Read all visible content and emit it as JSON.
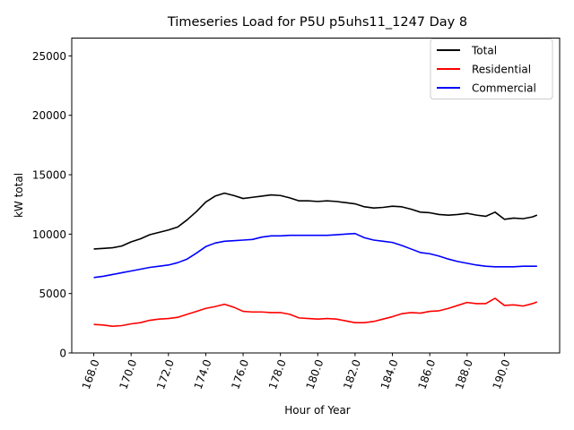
{
  "chart_data": {
    "type": "line",
    "title": "Timeseries Load for P5U p5uhs11_1247  Day 8",
    "xlabel": "Hour of Year",
    "ylabel": "kW total",
    "xlim": [
      166.82,
      192.96
    ],
    "ylim": [
      0,
      26500
    ],
    "xticks": [
      168,
      170,
      172,
      174,
      176,
      178,
      180,
      182,
      184,
      186,
      188,
      190
    ],
    "xtick_labels": [
      "168.0",
      "170.0",
      "172.0",
      "174.0",
      "176.0",
      "178.0",
      "180.0",
      "182.0",
      "184.0",
      "186.0",
      "188.0",
      "190.0"
    ],
    "yticks": [
      0,
      5000,
      10000,
      15000,
      20000,
      25000
    ],
    "ytick_labels": [
      "0",
      "5000",
      "10000",
      "15000",
      "20000",
      "25000"
    ],
    "legend_position": "top-right",
    "x": [
      168.0,
      168.5,
      169.0,
      169.5,
      170.0,
      170.5,
      171.0,
      171.5,
      172.0,
      172.5,
      173.0,
      173.5,
      174.0,
      174.5,
      175.0,
      175.5,
      176.0,
      176.5,
      177.0,
      177.5,
      178.0,
      178.5,
      179.0,
      179.5,
      180.0,
      180.5,
      181.0,
      181.5,
      182.0,
      182.5,
      183.0,
      183.5,
      184.0,
      184.5,
      185.0,
      185.5,
      186.0,
      186.5,
      187.0,
      187.5,
      188.0,
      188.5,
      189.0,
      189.5,
      190.0,
      190.5,
      191.0,
      191.5,
      191.75
    ],
    "series": [
      {
        "name": "Total",
        "color": "#000000",
        "values": [
          8750,
          8800,
          8850,
          9000,
          9350,
          9600,
          9950,
          10150,
          10350,
          10600,
          11200,
          11900,
          12700,
          13200,
          13450,
          13250,
          13000,
          13100,
          13200,
          13300,
          13250,
          13050,
          12800,
          12800,
          12750,
          12800,
          12750,
          12650,
          12550,
          12300,
          12200,
          12250,
          12350,
          12300,
          12100,
          11850,
          11800,
          11650,
          11600,
          11650,
          11750,
          11600,
          11500,
          11850,
          11250,
          11350,
          11300,
          11450,
          11600
        ]
      },
      {
        "name": "Residential",
        "color": "#ff0000",
        "values": [
          2400,
          2350,
          2250,
          2300,
          2450,
          2550,
          2750,
          2850,
          2900,
          3000,
          3250,
          3500,
          3750,
          3900,
          4100,
          3850,
          3500,
          3450,
          3450,
          3400,
          3400,
          3250,
          2950,
          2900,
          2850,
          2900,
          2850,
          2700,
          2550,
          2550,
          2650,
          2850,
          3050,
          3300,
          3400,
          3350,
          3500,
          3550,
          3750,
          4000,
          4250,
          4150,
          4150,
          4600,
          4000,
          4050,
          3950,
          4150,
          4300
        ]
      },
      {
        "name": "Commercial",
        "color": "#0000ff",
        "values": [
          6350,
          6450,
          6600,
          6750,
          6900,
          7050,
          7200,
          7300,
          7400,
          7600,
          7900,
          8400,
          8950,
          9250,
          9400,
          9450,
          9500,
          9550,
          9750,
          9850,
          9850,
          9900,
          9900,
          9900,
          9900,
          9900,
          9950,
          10000,
          10050,
          9700,
          9500,
          9400,
          9300,
          9050,
          8750,
          8450,
          8350,
          8150,
          7900,
          7700,
          7550,
          7400,
          7300,
          7250,
          7250,
          7250,
          7300,
          7300,
          7300
        ]
      }
    ]
  }
}
